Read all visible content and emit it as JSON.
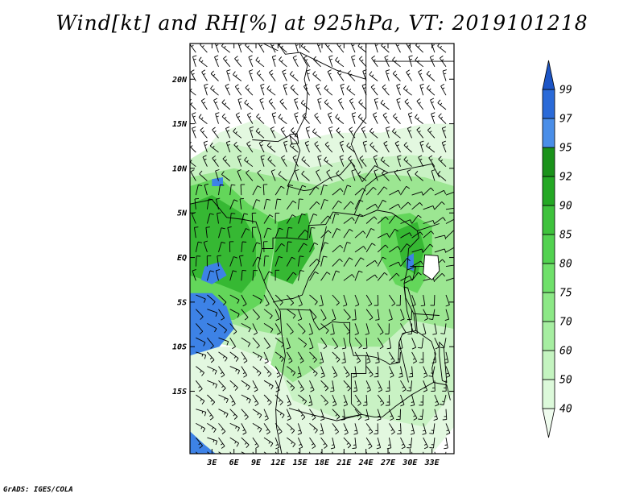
{
  "title": "Wind[kt] and RH[%] at 925hPa, VT: 2019101218",
  "credit": "GrADS: IGES/COLA",
  "map": {
    "lon_range": [
      0,
      36
    ],
    "lat_range": [
      -22,
      24
    ],
    "lon_ticks": [
      {
        "value": 3,
        "label": "3E"
      },
      {
        "value": 6,
        "label": "6E"
      },
      {
        "value": 9,
        "label": "9E"
      },
      {
        "value": 12,
        "label": "12E"
      },
      {
        "value": 15,
        "label": "15E"
      },
      {
        "value": 18,
        "label": "18E"
      },
      {
        "value": 21,
        "label": "21E"
      },
      {
        "value": 24,
        "label": "24E"
      },
      {
        "value": 27,
        "label": "27E"
      },
      {
        "value": 30,
        "label": "30E"
      },
      {
        "value": 33,
        "label": "33E"
      }
    ],
    "lat_ticks": [
      {
        "value": 20,
        "label": "20N"
      },
      {
        "value": 15,
        "label": "15N"
      },
      {
        "value": 10,
        "label": "10N"
      },
      {
        "value": 5,
        "label": "5N"
      },
      {
        "value": 0,
        "label": "EQ"
      },
      {
        "value": -5,
        "label": "5S"
      },
      {
        "value": -10,
        "label": "10S"
      },
      {
        "value": -15,
        "label": "15S"
      }
    ]
  },
  "colorbar": {
    "levels": [
      "40",
      "50",
      "60",
      "70",
      "75",
      "80",
      "85",
      "90",
      "92",
      "95",
      "97",
      "99"
    ],
    "colors": [
      "#effcee",
      "#dcf9da",
      "#c4f4c0",
      "#a6eea1",
      "#8ce886",
      "#6fe06a",
      "#52d250",
      "#3ec23c",
      "#24a824",
      "#1a921a",
      "#4a8ee8",
      "#2a6ad8",
      "#1c55c6"
    ]
  },
  "rh_colors": {
    "pale": "#e3f8e0",
    "light": "#c9f2c4",
    "medium": "#9ce692",
    "strong": "#63d65a",
    "deep": "#36b833",
    "blue": "#3d82e6"
  }
}
